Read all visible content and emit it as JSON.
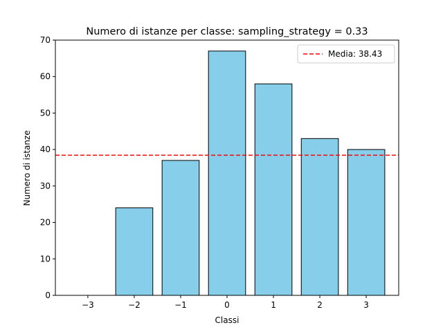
{
  "chart_data": {
    "type": "bar",
    "title": "Numero di istanze per classe: sampling_strategy = 0.33",
    "xlabel": "Classi",
    "ylabel": "Numero di istanze",
    "categories": [
      "−3",
      "−2",
      "−1",
      "0",
      "1",
      "2",
      "3"
    ],
    "x": [
      -3,
      -2,
      -1,
      0,
      1,
      2,
      3
    ],
    "values": [
      0,
      24,
      37,
      67,
      58,
      43,
      40
    ],
    "ylim": [
      0,
      70
    ],
    "yticks": [
      0,
      10,
      20,
      30,
      40,
      50,
      60,
      70
    ],
    "grid": false,
    "bar_color": "#87ceeb",
    "bar_edge_color": "#000000",
    "mean_line": {
      "value": 38.43,
      "label": "Media: 38.43",
      "color": "#ff0000",
      "style": "dashed"
    },
    "legend": {
      "placement": "top-right",
      "entries": [
        "Media: 38.43"
      ]
    }
  }
}
